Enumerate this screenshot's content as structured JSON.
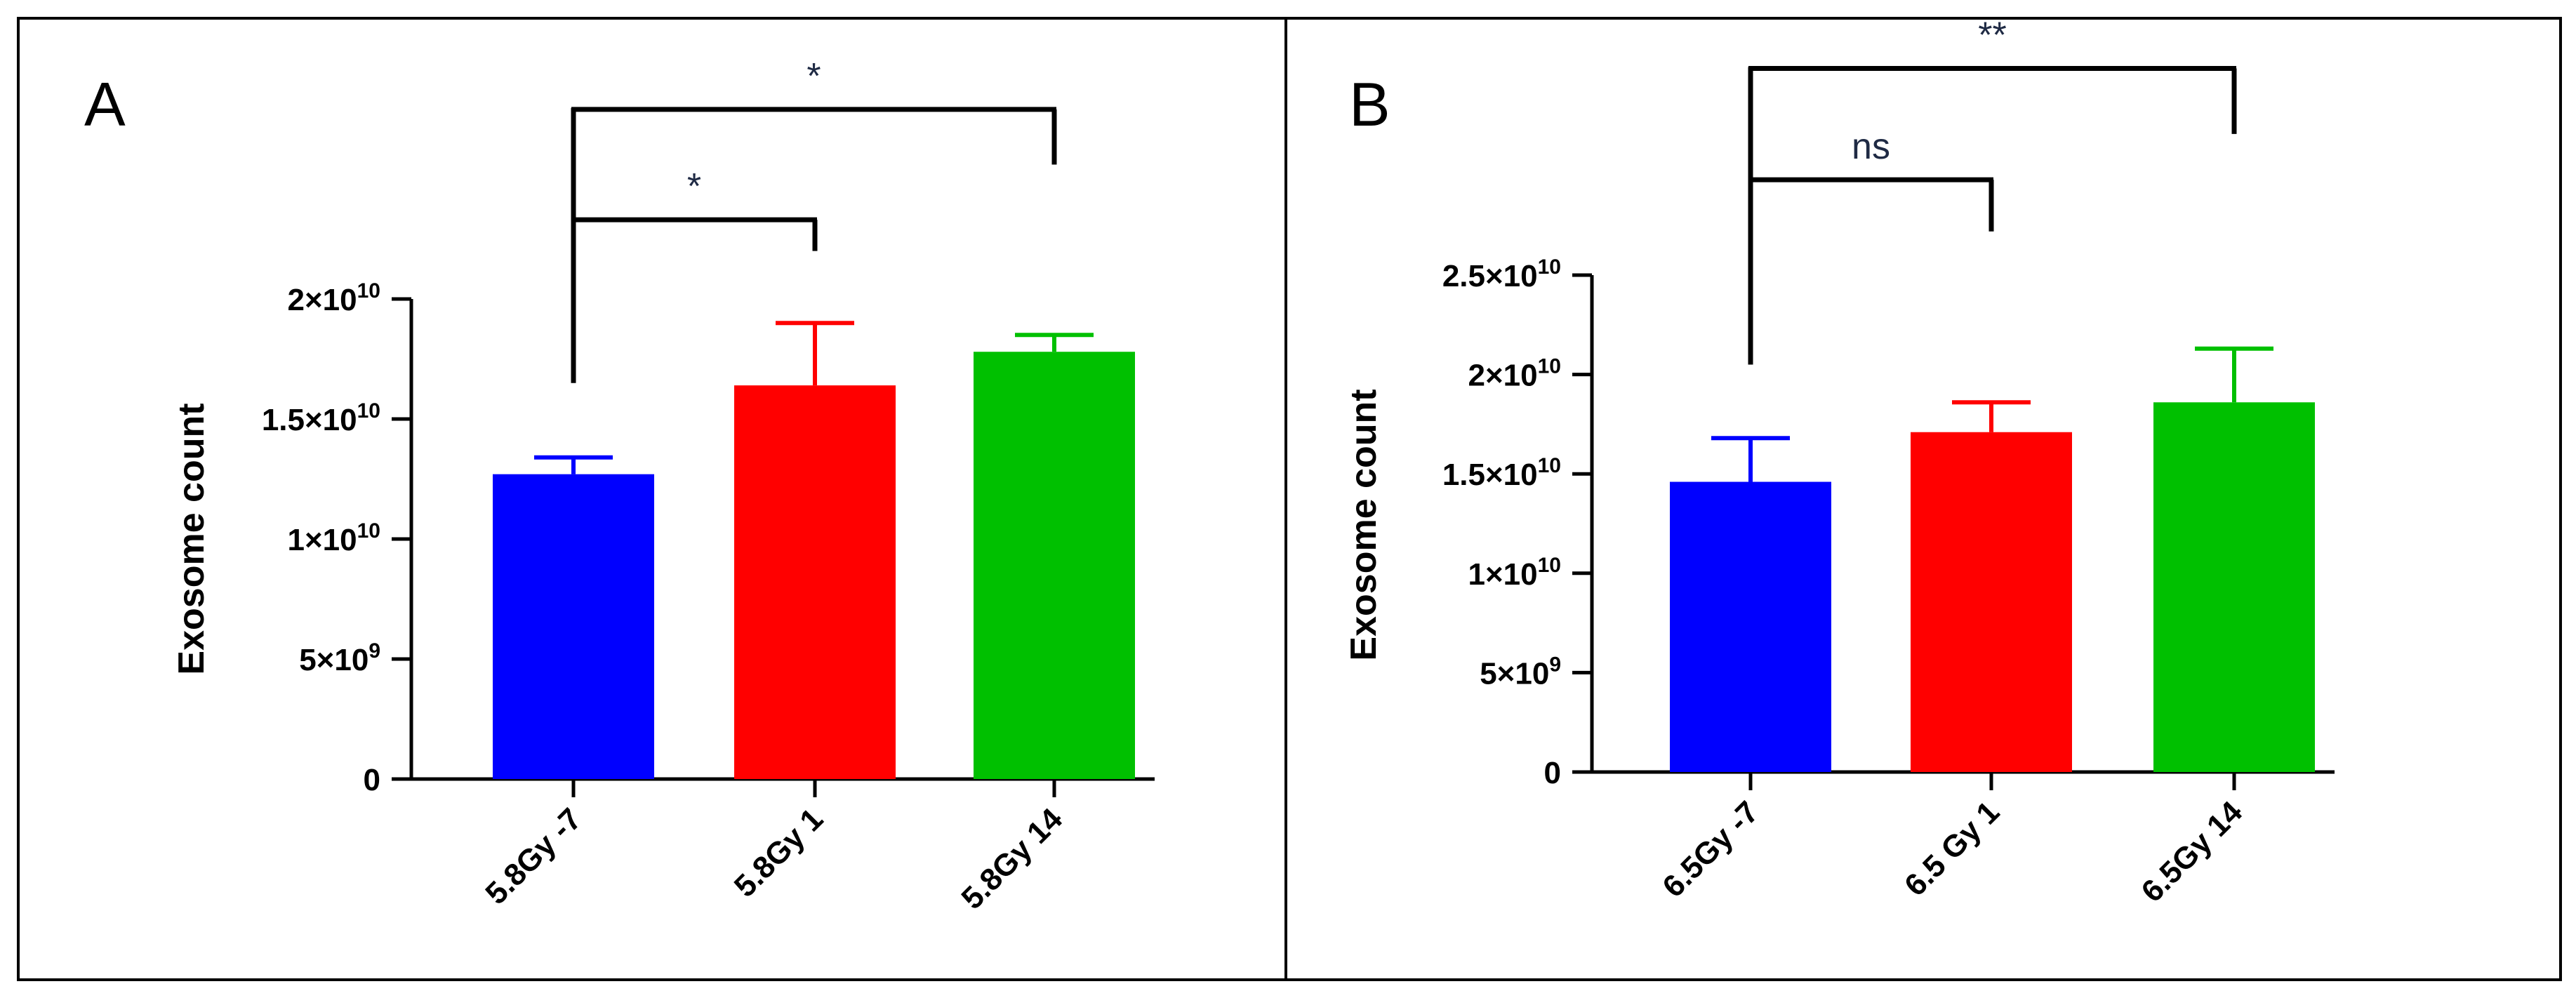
{
  "chart_data": [
    {
      "panel": "A",
      "type": "bar",
      "ylabel": "Exosome count",
      "ylim": [
        0,
        20000000000
      ],
      "yticks": [
        {
          "value": 0,
          "base": "0",
          "exp": ""
        },
        {
          "value": 5000000000,
          "base": "5×10",
          "exp": "9"
        },
        {
          "value": 10000000000,
          "base": "1×10",
          "exp": "10"
        },
        {
          "value": 15000000000,
          "base": "1.5×10",
          "exp": "10"
        },
        {
          "value": 20000000000,
          "base": "2×10",
          "exp": "10"
        }
      ],
      "categories": [
        "5.8Gy -7",
        "5.8Gy 1",
        "5.8Gy 14"
      ],
      "values": [
        12700000000,
        16400000000,
        17800000000
      ],
      "errors": [
        700000000,
        2600000000,
        700000000
      ],
      "colors": [
        "#0000ff",
        "#ff0000",
        "#00c000"
      ],
      "significance": [
        {
          "from": 0,
          "to": 1,
          "label": "*",
          "bracket_value": 23300000000,
          "leg_value": 22000000000
        },
        {
          "from": 0,
          "to": 2,
          "label": "*",
          "bracket_value": 27900000000,
          "leg_value": 25600000000
        }
      ],
      "start_leg_value": 16500000000
    },
    {
      "panel": "B",
      "type": "bar",
      "ylabel": "Exosome count",
      "ylim": [
        0,
        25000000000
      ],
      "yticks": [
        {
          "value": 0,
          "base": "0",
          "exp": ""
        },
        {
          "value": 5000000000,
          "base": "5×10",
          "exp": "9"
        },
        {
          "value": 10000000000,
          "base": "1×10",
          "exp": "10"
        },
        {
          "value": 15000000000,
          "base": "1.5×10",
          "exp": "10"
        },
        {
          "value": 20000000000,
          "base": "2×10",
          "exp": "10"
        },
        {
          "value": 25000000000,
          "base": "2.5×10",
          "exp": "10"
        }
      ],
      "categories": [
        "6.5Gy -7",
        "6.5 Gy 1",
        "6.5Gy 14"
      ],
      "values": [
        14600000000,
        17100000000,
        18600000000
      ],
      "errors": [
        2200000000,
        1500000000,
        2700000000
      ],
      "colors": [
        "#0000ff",
        "#ff0000",
        "#00c000"
      ],
      "significance": [
        {
          "from": 0,
          "to": 1,
          "label": "ns",
          "bracket_value": 29800000000,
          "leg_value": 27200000000
        },
        {
          "from": 0,
          "to": 2,
          "label": "**",
          "bracket_value": 35400000000,
          "leg_value": 32100000000
        }
      ],
      "start_leg_value": 20500000000
    }
  ]
}
